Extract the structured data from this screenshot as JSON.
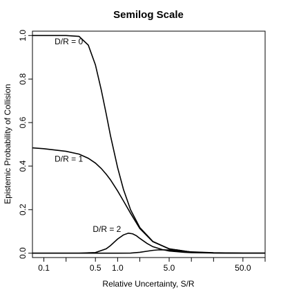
{
  "chart_data": {
    "type": "line",
    "title": "Semilog Scale",
    "xlabel": "Relative Uncertainty, S/R",
    "ylabel": "Epistemic Probability of Collision",
    "xscale": "log",
    "xlim": [
      0.07,
      100
    ],
    "ylim": [
      -0.02,
      1.02
    ],
    "x_ticks": [
      0.1,
      0.5,
      1.0,
      5.0,
      50.0
    ],
    "x_tick_labels": [
      "0.1",
      "0.5",
      "1.0",
      "5.0",
      "50.0"
    ],
    "x_minor_ticks": [
      0.2,
      2.0,
      10.0,
      20.0,
      100.0
    ],
    "y_ticks": [
      0.0,
      0.2,
      0.4,
      0.6,
      0.8,
      1.0
    ],
    "y_tick_labels": [
      "0.0",
      "0.2",
      "0.4",
      "0.6",
      "0.8",
      "1.0"
    ],
    "grid": false,
    "legend": "none",
    "series": [
      {
        "x": [
          0.07,
          0.1,
          0.2,
          0.3,
          0.4,
          0.5,
          0.6,
          0.7,
          0.8,
          1.0,
          1.2,
          1.5,
          2.0,
          3.0,
          5.0,
          10.0,
          20.0,
          50.0,
          100.0
        ],
        "y": [
          1.0,
          1.0,
          1.0,
          0.996,
          0.956,
          0.865,
          0.75,
          0.64,
          0.54,
          0.393,
          0.293,
          0.199,
          0.118,
          0.054,
          0.02,
          0.005,
          0.0012,
          0.0002,
          0.0
        ]
      },
      {
        "x": [
          0.07,
          0.1,
          0.2,
          0.3,
          0.4,
          0.5,
          0.6,
          0.7,
          0.8,
          1.0,
          1.2,
          1.5,
          2.0,
          3.0,
          5.0,
          10.0,
          20.0,
          50.0,
          100.0
        ],
        "y": [
          0.484,
          0.48,
          0.468,
          0.455,
          0.436,
          0.414,
          0.389,
          0.363,
          0.337,
          0.286,
          0.24,
          0.183,
          0.113,
          0.053,
          0.02,
          0.005,
          0.0012,
          0.0002,
          0.0
        ]
      },
      {
        "x": [
          0.07,
          0.3,
          0.5,
          0.7,
          0.8,
          1.0,
          1.2,
          1.4,
          1.6,
          1.8,
          2.0,
          2.5,
          3.0,
          4.0,
          5.0,
          8.0,
          10.0,
          20.0,
          50.0,
          100.0
        ],
        "y": [
          0.0,
          0.0,
          0.003,
          0.02,
          0.035,
          0.065,
          0.084,
          0.092,
          0.089,
          0.08,
          0.068,
          0.045,
          0.03,
          0.017,
          0.01,
          0.004,
          0.0025,
          0.0007,
          0.0001,
          0.0
        ]
      },
      {
        "x": [
          0.07,
          1.0,
          1.5,
          2.0,
          2.5,
          3.0,
          3.5,
          4.0,
          5.0,
          6.0,
          8.0,
          10.0,
          20.0,
          50.0,
          100.0
        ],
        "y": [
          0.0,
          0.0,
          0.0005,
          0.004,
          0.009,
          0.013,
          0.015,
          0.0155,
          0.0145,
          0.012,
          0.008,
          0.006,
          0.002,
          0.0003,
          0.0
        ]
      }
    ],
    "annotations": [
      {
        "text": "D/R = 0",
        "x": 0.14,
        "y": 0.96
      },
      {
        "text": "D/R = 1",
        "x": 0.14,
        "y": 0.42
      },
      {
        "text": "D/R = 2",
        "x": 0.46,
        "y": 0.098
      }
    ]
  }
}
